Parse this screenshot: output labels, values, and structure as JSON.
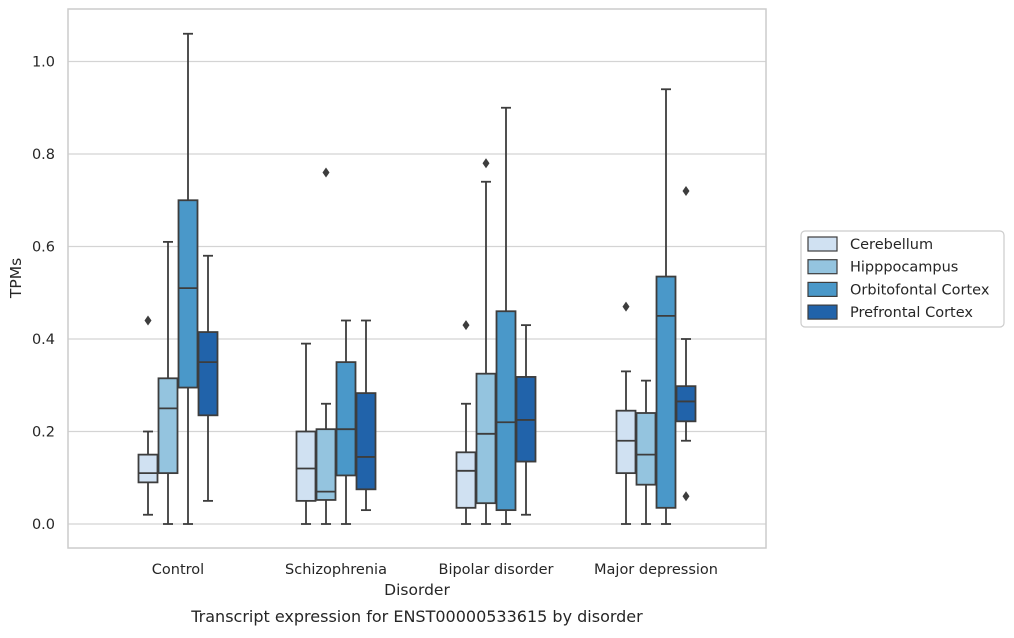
{
  "chart_data": {
    "type": "box",
    "title": "Transcript expression for ENST00000533615 by disorder",
    "xlabel": "Disorder",
    "ylabel": "TPMs",
    "ylim": [
      -0.05,
      1.12
    ],
    "yticks": [
      0.0,
      0.2,
      0.4,
      0.6,
      0.8,
      1.0
    ],
    "ytick_labels": [
      "0.0",
      "0.2",
      "0.4",
      "0.6",
      "0.8",
      "1.0"
    ],
    "grid": "horizontal",
    "legend_position": "right",
    "categories": [
      "Control",
      "Schizophrenia",
      "Bipolar disorder",
      "Major depression"
    ],
    "series": [
      {
        "name": "Cerebellum",
        "color": "#d0e1f2",
        "boxes": [
          {
            "whislo": 0.02,
            "q1": 0.09,
            "med": 0.11,
            "q3": 0.15,
            "whishi": 0.2,
            "fliers": [
              0.44
            ]
          },
          {
            "whislo": 0.0,
            "q1": 0.05,
            "med": 0.12,
            "q3": 0.2,
            "whishi": 0.39,
            "fliers": []
          },
          {
            "whislo": 0.0,
            "q1": 0.035,
            "med": 0.115,
            "q3": 0.155,
            "whishi": 0.26,
            "fliers": [
              0.43
            ]
          },
          {
            "whislo": 0.0,
            "q1": 0.11,
            "med": 0.18,
            "q3": 0.245,
            "whishi": 0.33,
            "fliers": [
              0.47
            ]
          }
        ]
      },
      {
        "name": "Hipppocampus",
        "color": "#94c4df",
        "boxes": [
          {
            "whislo": 0.0,
            "q1": 0.11,
            "med": 0.25,
            "q3": 0.315,
            "whishi": 0.61,
            "fliers": []
          },
          {
            "whislo": 0.0,
            "q1": 0.052,
            "med": 0.07,
            "q3": 0.205,
            "whishi": 0.26,
            "fliers": [
              0.76
            ]
          },
          {
            "whislo": 0.0,
            "q1": 0.045,
            "med": 0.195,
            "q3": 0.325,
            "whishi": 0.74,
            "fliers": [
              0.78
            ]
          },
          {
            "whislo": 0.0,
            "q1": 0.085,
            "med": 0.15,
            "q3": 0.24,
            "whishi": 0.31,
            "fliers": []
          }
        ]
      },
      {
        "name": "Orbitofontal Cortex",
        "color": "#4a98c9",
        "boxes": [
          {
            "whislo": 0.0,
            "q1": 0.295,
            "med": 0.51,
            "q3": 0.7,
            "whishi": 1.06,
            "fliers": []
          },
          {
            "whislo": 0.0,
            "q1": 0.105,
            "med": 0.205,
            "q3": 0.35,
            "whishi": 0.44,
            "fliers": []
          },
          {
            "whislo": 0.0,
            "q1": 0.03,
            "med": 0.22,
            "q3": 0.46,
            "whishi": 0.9,
            "fliers": []
          },
          {
            "whislo": 0.0,
            "q1": 0.035,
            "med": 0.45,
            "q3": 0.535,
            "whishi": 0.94,
            "fliers": []
          }
        ]
      },
      {
        "name": "Prefrontal Cortex",
        "color": "#2163aa",
        "boxes": [
          {
            "whislo": 0.05,
            "q1": 0.235,
            "med": 0.35,
            "q3": 0.415,
            "whishi": 0.58,
            "fliers": []
          },
          {
            "whislo": 0.03,
            "q1": 0.075,
            "med": 0.145,
            "q3": 0.283,
            "whishi": 0.44,
            "fliers": []
          },
          {
            "whislo": 0.02,
            "q1": 0.135,
            "med": 0.225,
            "q3": 0.318,
            "whishi": 0.43,
            "fliers": []
          },
          {
            "whislo": 0.18,
            "q1": 0.222,
            "med": 0.265,
            "q3": 0.298,
            "whishi": 0.4,
            "fliers": [
              0.72,
              0.06
            ]
          }
        ]
      }
    ]
  }
}
